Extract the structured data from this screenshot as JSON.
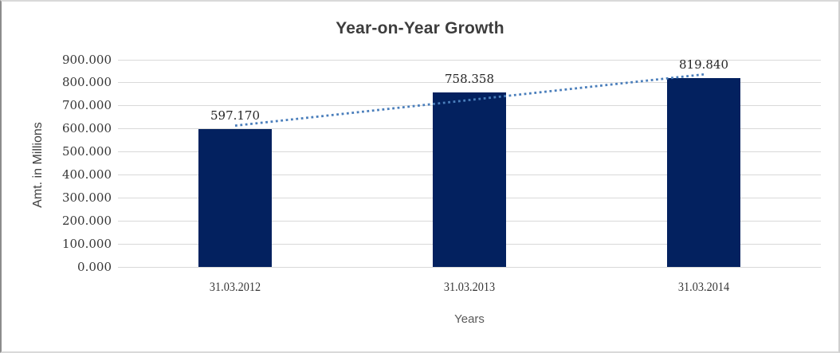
{
  "chart_data": {
    "type": "bar",
    "title": "Year-on-Year Growth",
    "xlabel": "Years",
    "ylabel": "Amt. in Millions",
    "categories": [
      "31.03.2012",
      "31.03.2013",
      "31.03.2014"
    ],
    "values": [
      597.17,
      758.358,
      819.84
    ],
    "value_labels": [
      "597.170",
      "758.358",
      "819.840"
    ],
    "ylim": [
      0,
      900
    ],
    "y_tick_labels": [
      "0.000",
      "100.000",
      "200.000",
      "300.000",
      "400.000",
      "500.000",
      "600.000",
      "700.000",
      "800.000",
      "900.000"
    ],
    "grid": "horizontal-only",
    "legend": "none",
    "bar_color": "#03215f",
    "gridline_color": "#d9d9d9",
    "label_color": "#262626",
    "trendline": {
      "type": "linear",
      "style": "dotted",
      "color": "#4a7ebb"
    }
  }
}
